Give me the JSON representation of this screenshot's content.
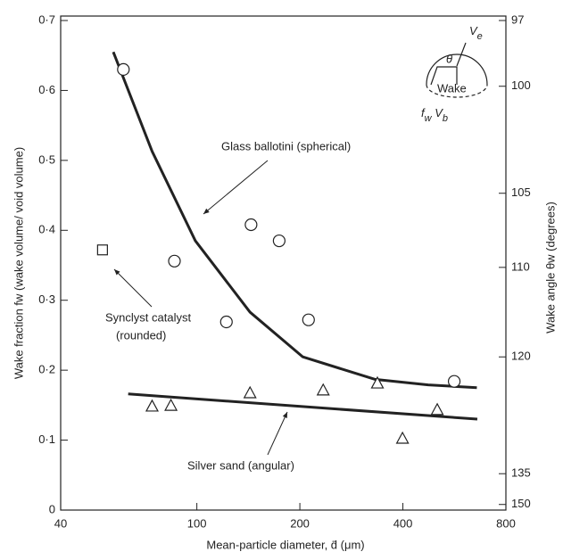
{
  "chart_data": {
    "type": "scatter",
    "ylabel": "Wake fraction  fw  (wake volume/ void volume)",
    "y2label": "Wake angle  θw  (degrees)",
    "xlabel": "Mean-particle diameter, d̄ (μm)",
    "log_x": true,
    "color": "#222222",
    "xlim": [
      40,
      800
    ],
    "xticks": [
      40,
      100,
      200,
      400,
      800
    ],
    "ylim": [
      0,
      0.7
    ],
    "yticks": [
      {
        "value": 0,
        "label": "0"
      },
      {
        "value": 0.1,
        "label": "0·1"
      },
      {
        "value": 0.2,
        "label": "0·2"
      },
      {
        "value": 0.3,
        "label": "0·3"
      },
      {
        "value": 0.4,
        "label": "0·4"
      },
      {
        "value": 0.5,
        "label": "0·5"
      },
      {
        "value": 0.6,
        "label": "0·6"
      },
      {
        "value": 0.7,
        "label": "0·7"
      }
    ],
    "y2ticks": [
      97,
      100,
      105,
      110,
      120,
      135,
      150
    ],
    "y2ticks_fw": [
      0.7,
      0.606,
      0.453,
      0.347,
      0.219,
      0.052,
      0.008
    ],
    "series": [
      {
        "name": "Glass ballotini (spherical)",
        "marker": "circle",
        "x": [
          61,
          86,
          122,
          144,
          174,
          212,
          565
        ],
        "values": [
          0.63,
          0.356,
          0.269,
          0.408,
          0.385,
          0.272,
          0.184
        ],
        "fit": {
          "x": [
            57,
            74,
            99,
            143,
            204,
            331,
            474,
            658
          ],
          "values": [
            0.655,
            0.513,
            0.385,
            0.283,
            0.219,
            0.187,
            0.179,
            0.175
          ]
        }
      },
      {
        "name": "Silver sand  (angular)",
        "marker": "triangle",
        "x": [
          74,
          84,
          143,
          234,
          337,
          399,
          504
        ],
        "values": [
          0.148,
          0.149,
          0.167,
          0.171,
          0.181,
          0.102,
          0.143
        ],
        "fit": {
          "x": [
            63,
            660
          ],
          "values": [
            0.166,
            0.13
          ]
        }
      },
      {
        "name": [
          "Synclyst catalyst",
          "(rounded)"
        ],
        "marker": "square",
        "x": [
          53
        ],
        "values": [
          0.372
        ]
      }
    ],
    "inset": {
      "angle": "θ",
      "velocity": [
        "V",
        "e"
      ],
      "wake": "Wake",
      "wake_volume": [
        "f",
        "w",
        " V",
        "b"
      ]
    }
  }
}
